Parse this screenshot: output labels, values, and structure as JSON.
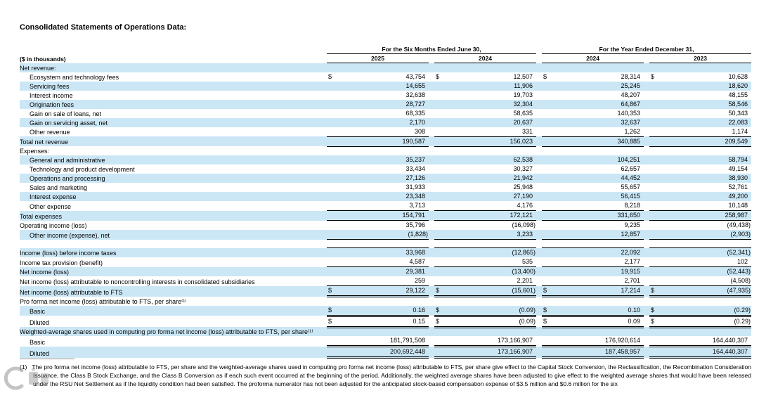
{
  "page": {
    "title": "Consolidated Statements of Operations Data:"
  },
  "colors": {
    "row_shade": "#cbe7f6",
    "rule": "#000000"
  },
  "table": {
    "left_header": "($ in thousands)",
    "col_groups": [
      {
        "label": "For the Six Months Ended June 30,",
        "years": [
          "2025",
          "2024"
        ]
      },
      {
        "label": "For the Year Ended December 31,",
        "years": [
          "2024",
          "2023"
        ]
      }
    ],
    "rows": [
      {
        "label": "Net revenue:",
        "indent": 0,
        "shaded": true
      },
      {
        "label": "Ecosystem and technology fees",
        "indent": 1,
        "shaded": false,
        "dollar": true,
        "values": [
          "43,754",
          "12,507",
          "28,314",
          "10,628"
        ]
      },
      {
        "label": "Servicing fees",
        "indent": 1,
        "shaded": true,
        "values": [
          "14,655",
          "11,906",
          "25,245",
          "18,620"
        ]
      },
      {
        "label": "Interest income",
        "indent": 1,
        "shaded": false,
        "values": [
          "32,638",
          "19,703",
          "48,207",
          "48,155"
        ]
      },
      {
        "label": "Origination fees",
        "indent": 1,
        "shaded": true,
        "values": [
          "28,727",
          "32,304",
          "64,867",
          "58,546"
        ]
      },
      {
        "label": "Gain on sale of loans, net",
        "indent": 1,
        "shaded": false,
        "values": [
          "68,335",
          "58,635",
          "140,353",
          "50,343"
        ]
      },
      {
        "label": "Gain on servicing asset, net",
        "indent": 1,
        "shaded": true,
        "values": [
          "2,170",
          "20,637",
          "32,637",
          "22,083"
        ]
      },
      {
        "label": "Other revenue",
        "indent": 1,
        "shaded": false,
        "values": [
          "308",
          "331",
          "1,262",
          "1,174"
        ],
        "rule": "bottom"
      },
      {
        "label": "Total net revenue",
        "indent": 0,
        "shaded": true,
        "values": [
          "190,587",
          "156,023",
          "340,885",
          "209,549"
        ],
        "rule": "bottom"
      },
      {
        "label": "Expenses:",
        "indent": 0,
        "shaded": false
      },
      {
        "label": "General and administrative",
        "indent": 1,
        "shaded": true,
        "values": [
          "35,237",
          "62,538",
          "104,251",
          "58,794"
        ]
      },
      {
        "label": "Technology and product development",
        "indent": 1,
        "shaded": false,
        "values": [
          "33,434",
          "30,327",
          "62,657",
          "49,154"
        ]
      },
      {
        "label": "Operations and processing",
        "indent": 1,
        "shaded": true,
        "values": [
          "27,126",
          "21,942",
          "44,452",
          "38,930"
        ]
      },
      {
        "label": "Sales and marketing",
        "indent": 1,
        "shaded": false,
        "values": [
          "31,933",
          "25,948",
          "55,657",
          "52,761"
        ]
      },
      {
        "label": "Interest expense",
        "indent": 1,
        "shaded": true,
        "values": [
          "23,348",
          "27,190",
          "56,415",
          "49,200"
        ]
      },
      {
        "label": "Other expense",
        "indent": 1,
        "shaded": false,
        "values": [
          "3,713",
          "4,176",
          "8,218",
          "10,148"
        ],
        "rule": "bottom"
      },
      {
        "label": "Total expenses",
        "indent": 0,
        "shaded": true,
        "values": [
          "154,791",
          "172,121",
          "331,650",
          "258,987"
        ],
        "rule": "bottom"
      },
      {
        "label": "Operating income (loss)",
        "indent": 0,
        "shaded": false,
        "values": [
          "35,796",
          "(16,098)",
          "9,235",
          "(49,438)"
        ]
      },
      {
        "label": "Other income (expense), net",
        "indent": 1,
        "shaded": true,
        "values": [
          "(1,828)",
          "3,233",
          "12,857",
          "(2,903)"
        ],
        "rule": "bottom"
      },
      {
        "label": "",
        "indent": 0,
        "shaded": false,
        "spacer": true
      },
      {
        "label": "Income (loss) before income taxes",
        "indent": 0,
        "shaded": true,
        "values": [
          "33,968",
          "(12,865)",
          "22,092",
          "(52,341)"
        ],
        "rule": "top"
      },
      {
        "label": "Income tax provision (benefit)",
        "indent": 0,
        "shaded": false,
        "values": [
          "4,587",
          "535",
          "2,177",
          "102"
        ],
        "rule": "bottom"
      },
      {
        "label": "Net income (loss)",
        "indent": 0,
        "shaded": true,
        "values": [
          "29,381",
          "(13,400)",
          "19,915",
          "(52,443)"
        ]
      },
      {
        "label": "Net income (loss) attributable to noncontrolling interests in consolidated subsidiaries",
        "indent": 0,
        "shaded": false,
        "values": [
          "259",
          "2,201",
          "2,701",
          "(4,508)"
        ],
        "rule": "bottom"
      },
      {
        "label": "Net income (loss) attributable to FTS",
        "indent": 0,
        "shaded": true,
        "dollar": true,
        "values": [
          "29,122",
          "(15,601)",
          "17,214",
          "(47,935)"
        ],
        "rule": "double"
      },
      {
        "label": "Pro forma net income (loss) attributable to FTS, per share⁽¹⁾",
        "indent": 0,
        "shaded": false
      },
      {
        "label": "Basic",
        "indent": 1,
        "shaded": true,
        "dollar": true,
        "values": [
          "0.16",
          "(0.09)",
          "0.10",
          "(0.29)"
        ],
        "rule": "double"
      },
      {
        "label": "Diluted",
        "indent": 1,
        "shaded": false,
        "dollar": true,
        "values": [
          "0.15",
          "(0.09)",
          "0.09",
          "(0.29)"
        ],
        "rule": "double"
      },
      {
        "label": "Weighted-average shares used in computing pro forma net income (loss) attributable to FTS, per share⁽¹⁾",
        "indent": 0,
        "shaded": true,
        "hang": true
      },
      {
        "label": "Basic",
        "indent": 1,
        "shaded": false,
        "values": [
          "181,791,508",
          "173,166,907",
          "176,920,614",
          "164,440,307"
        ],
        "rule": "double"
      },
      {
        "label": "Diluted",
        "indent": 1,
        "shaded": true,
        "values": [
          "200,692,448",
          "173,166,907",
          "187,458,957",
          "164,440,307"
        ],
        "rule": "double"
      }
    ]
  },
  "footnote": {
    "marker": "(1)",
    "text": "The pro forma net income (loss) attributable to FTS, per share and the weighted-average shares used in computing pro forma net income (loss) attributable to FTS, per share give effect to the Capital Stock Conversion, the Reclassification, the Recombination Consideration Issuance, the Class B Stock Exchange, and the Class B Conversion as if each such event occurred at the beginning of the period. Additionally, the weighted average shares have been adjusted to give effect to the weighted average shares that would have been released under the RSU Net Settlement as if the liquidity condition had been satisfied. The proforma numerator has not been adjusted for the anticipated stock-based compensation expense of $3.5 million and $0.6 million for the six"
  }
}
